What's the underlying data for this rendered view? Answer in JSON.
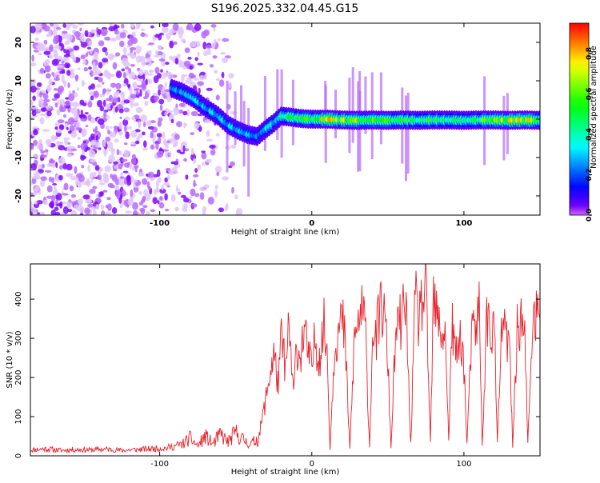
{
  "title": "S196.2025.332.04.45.G15",
  "chart_data": [
    {
      "type": "heatmap",
      "xlabel": "Height of straight line (km)",
      "ylabel": "Frequency (Hz)",
      "xlim": [
        -185,
        150
      ],
      "ylim": [
        -25,
        25
      ],
      "xticks": [
        -100,
        0,
        100
      ],
      "xtick_labels": [
        "-100",
        "0",
        "100"
      ],
      "yticks": [
        -20,
        -10,
        0,
        10,
        20
      ],
      "ytick_labels": [
        "-20",
        "-10",
        "0",
        "10",
        "20"
      ],
      "colorbar": {
        "label": "Normalized spectral amplitude",
        "range": [
          0,
          0.95
        ],
        "ticks": [
          0.0,
          0.2,
          0.4,
          0.6,
          0.8
        ],
        "tick_labels": [
          "0.0",
          "0.2",
          "0.4",
          "0.6",
          "0.8"
        ],
        "colormap": "rainbow"
      },
      "ridge": {
        "x": [
          -92,
          -85,
          -78,
          -70,
          -62,
          -55,
          -48,
          -42,
          -36,
          -30,
          -25,
          -20,
          -15,
          -10,
          -5,
          0,
          10,
          20,
          30,
          40,
          50,
          60,
          70,
          80,
          90,
          100,
          110,
          120,
          130,
          140,
          150
        ],
        "freq": [
          8,
          7,
          5.5,
          3,
          1,
          -1.5,
          -3,
          -4,
          -4.5,
          -2.5,
          -1,
          0.8,
          0.6,
          0.3,
          0.1,
          0,
          0,
          -0.2,
          -0.3,
          -0.2,
          -0.3,
          -0.2,
          -0.3,
          -0.2,
          -0.2,
          -0.3,
          -0.2,
          -0.2,
          -0.3,
          -0.2,
          -0.3
        ],
        "amplitude": [
          0.25,
          0.3,
          0.35,
          0.3,
          0.35,
          0.3,
          0.35,
          0.3,
          0.3,
          0.35,
          0.35,
          0.45,
          0.5,
          0.55,
          0.55,
          0.6,
          0.8,
          0.7,
          0.65,
          0.6,
          0.55,
          0.6,
          0.5,
          0.55,
          0.5,
          0.5,
          0.55,
          0.75,
          0.8,
          0.85,
          0.7
        ]
      }
    },
    {
      "type": "line",
      "xlabel": "Height of straight line (km)",
      "ylabel": "SNR (10 * v/v)",
      "xlim": [
        -185,
        150
      ],
      "ylim": [
        0,
        490
      ],
      "xticks": [
        -100,
        0,
        100
      ],
      "xtick_labels": [
        "-100",
        "0",
        "100"
      ],
      "yticks": [
        0,
        100,
        200,
        300,
        400
      ],
      "ytick_labels": [
        "0",
        "100",
        "200",
        "300",
        "400"
      ],
      "series": [
        {
          "color": "#e8202a",
          "x": [
            -185,
            -175,
            -165,
            -155,
            -145,
            -135,
            -125,
            -115,
            -105,
            -95,
            -85,
            -80,
            -75,
            -70,
            -65,
            -60,
            -55,
            -50,
            -45,
            -40,
            -35,
            -30,
            -28,
            -25,
            -22,
            -20,
            -17,
            -15,
            -12,
            -10,
            -8,
            -5,
            -3,
            0,
            2,
            5,
            8,
            10,
            12,
            15,
            18,
            20,
            22,
            25,
            28,
            30,
            32,
            35,
            38,
            40,
            42,
            45,
            48,
            50,
            52,
            55,
            58,
            60,
            62,
            65,
            68,
            70,
            72,
            75,
            78,
            80,
            82,
            85,
            88,
            90,
            92,
            95,
            98,
            100,
            102,
            105,
            108,
            110,
            112,
            115,
            118,
            120,
            122,
            125,
            128,
            130,
            132,
            135,
            138,
            140,
            142,
            145,
            148,
            150
          ],
          "y": [
            15,
            18,
            14,
            16,
            15,
            17,
            14,
            16,
            18,
            20,
            30,
            45,
            25,
            50,
            30,
            55,
            35,
            60,
            40,
            30,
            45,
            150,
            200,
            260,
            180,
            300,
            220,
            330,
            150,
            290,
            250,
            320,
            270,
            220,
            300,
            250,
            330,
            270,
            20,
            290,
            320,
            350,
            280,
            15,
            300,
            330,
            370,
            340,
            20,
            330,
            290,
            380,
            350,
            240,
            20,
            300,
            340,
            360,
            380,
            25,
            400,
            350,
            380,
            420,
            30,
            400,
            350,
            320,
            300,
            30,
            330,
            250,
            310,
            230,
            30,
            300,
            330,
            380,
            25,
            350,
            320,
            330,
            30,
            340,
            300,
            280,
            25,
            320,
            350,
            300,
            30,
            330,
            360,
            350
          ]
        }
      ]
    }
  ]
}
